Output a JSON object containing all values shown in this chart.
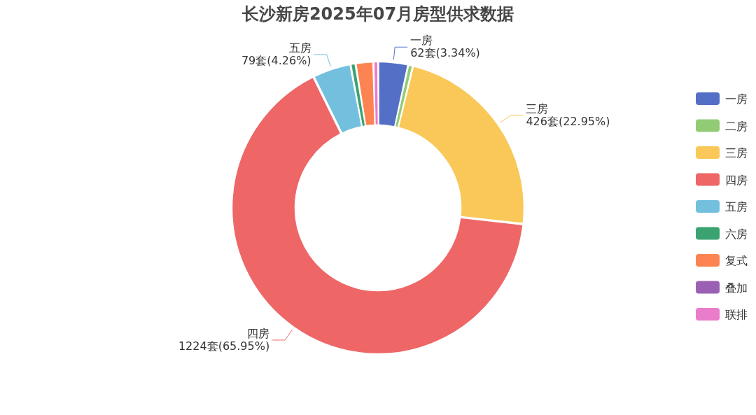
{
  "chart_data": {
    "type": "donut",
    "title": "长沙新房2025年07月房型供求数据",
    "categories": [
      "一房",
      "二房",
      "三房",
      "四房",
      "五房",
      "六房",
      "复式",
      "叠加",
      "联排"
    ],
    "values": [
      62,
      9,
      426,
      1224,
      79,
      10,
      37,
      0,
      9
    ],
    "colors": [
      "#5470c6",
      "#91cc75",
      "#fac858",
      "#ee6666",
      "#73c0de",
      "#3ba272",
      "#fc8452",
      "#9a60b4",
      "#ea7ccc"
    ],
    "value_labels": [
      "62套(3.34%)",
      null,
      "426套(22.95%)",
      "1224套(65.95%)",
      "79套(4.26%)",
      null,
      null,
      null,
      null
    ],
    "legend": "right"
  }
}
